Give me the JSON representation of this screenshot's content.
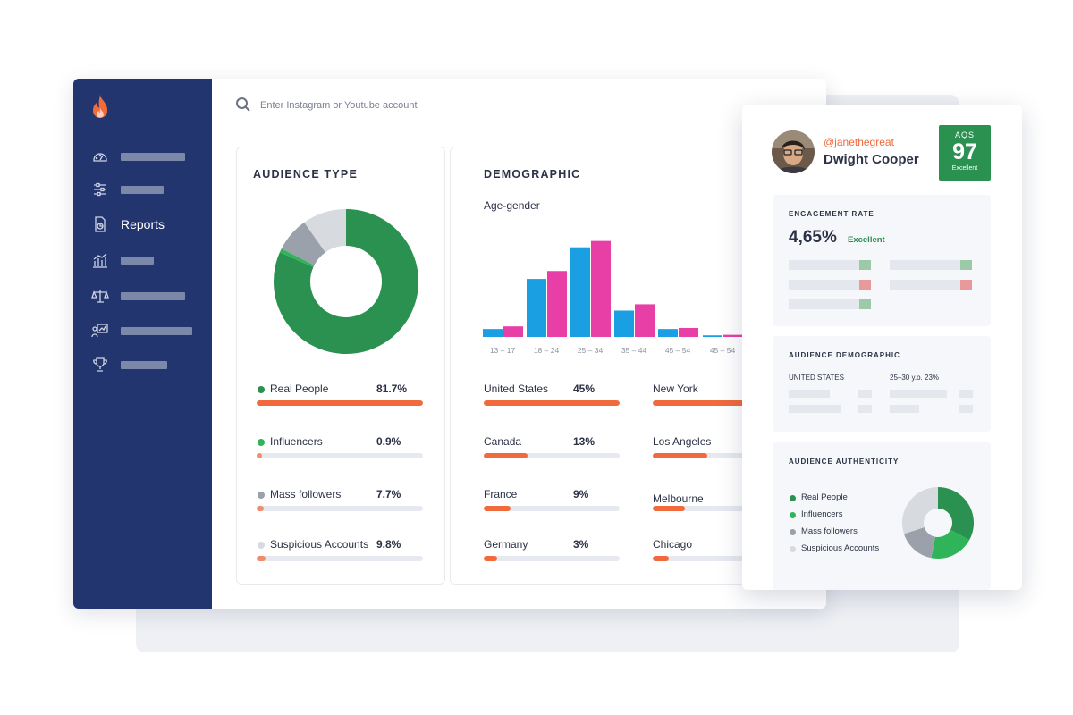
{
  "search": {
    "placeholder": "Enter Instagram or Youtube account"
  },
  "sidebar": {
    "items": [
      {
        "icon": "dashboard-icon",
        "label": ""
      },
      {
        "icon": "sliders-icon",
        "label": ""
      },
      {
        "icon": "reports-icon",
        "label": "Reports"
      },
      {
        "icon": "analytics-icon",
        "label": ""
      },
      {
        "icon": "balance-icon",
        "label": ""
      },
      {
        "icon": "presentation-icon",
        "label": ""
      },
      {
        "icon": "trophy-icon",
        "label": ""
      }
    ]
  },
  "audience_type": {
    "title": "AUDIENCE TYPE",
    "items": [
      {
        "label": "Real People",
        "value": "81.7%",
        "fraction": 0.817,
        "color": "#2a9150"
      },
      {
        "label": "Influencers",
        "value": "0.9%",
        "fraction": 0.009,
        "color": "#2fb45a"
      },
      {
        "label": "Mass followers",
        "value": "7.7%",
        "fraction": 0.077,
        "color": "#9aa1ab"
      },
      {
        "label": "Suspicious Accounts",
        "value": "9.8%",
        "fraction": 0.098,
        "color": "#d7dade"
      }
    ],
    "bar_color": "#f06a3e",
    "bar_color_light": "#f28b6a"
  },
  "demographic": {
    "title": "DEMOGRAPHIC",
    "subtitle": "Age-gender",
    "colors": {
      "male": "#1a9fe3",
      "female": "#e83fa7"
    },
    "countries": [
      {
        "label": "United States",
        "value": "45%",
        "fraction": 1.0
      },
      {
        "label": "Canada",
        "value": "13%",
        "fraction": 0.32
      },
      {
        "label": "France",
        "value": "9%",
        "fraction": 0.2
      },
      {
        "label": "Germany",
        "value": "3%",
        "fraction": 0.1
      }
    ],
    "cities": [
      {
        "label": "New York",
        "fraction": 0.85
      },
      {
        "label": "Los Angeles",
        "fraction": 0.4
      },
      {
        "label": "Melbourne",
        "fraction": 0.24
      },
      {
        "label": "Chicago",
        "fraction": 0.12
      }
    ]
  },
  "chart_data": {
    "type": "bar",
    "subtitle": "Age-gender",
    "categories": [
      "13 – 17",
      "18 – 24",
      "25 – 34",
      "35 – 44",
      "45 – 54",
      "45 – 54"
    ],
    "series": [
      {
        "values": [
          1.5,
          11,
          17,
          5,
          1.5,
          0.3
        ]
      },
      {
        "values": [
          2,
          12.5,
          18.2,
          6.2,
          1.7,
          0.4
        ]
      }
    ],
    "ylim": [
      0,
      20
    ]
  },
  "profile": {
    "handle": "@janethegreat",
    "name": "Dwight Cooper",
    "aqs_label": "AQS",
    "aqs_score": "97",
    "aqs_status": "Excellent",
    "engagement": {
      "title": "ENGAGEMENT RATE",
      "value": "4,65%",
      "status": "Excellent"
    },
    "audience_demographic": {
      "title": "AUDIENCE DEMOGRAPHIC",
      "country": "UNITED STATES",
      "age": "25–30 y.o. 23%"
    },
    "audience_authenticity": {
      "title": "AUDIENCE AUTHENTICITY",
      "legend": [
        {
          "label": "Real People",
          "color": "#2a9150",
          "fraction": 0.33
        },
        {
          "label": "Influencers",
          "color": "#2fb45a",
          "fraction": 0.2
        },
        {
          "label": "Mass followers",
          "color": "#9aa1ab",
          "fraction": 0.17
        },
        {
          "label": "Suspicious Accounts",
          "color": "#d7dade",
          "fraction": 0.3
        }
      ]
    }
  }
}
